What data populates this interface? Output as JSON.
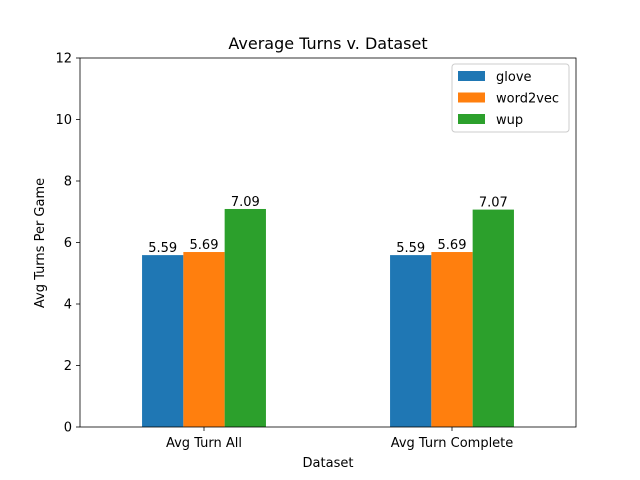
{
  "chart_data": {
    "type": "bar",
    "title": "Average Turns v. Dataset",
    "xlabel": "Dataset",
    "ylabel": "Avg Turns Per Game",
    "categories": [
      "Avg Turn All",
      "Avg Turn Complete"
    ],
    "series": [
      {
        "name": "glove",
        "color": "#1f77b4",
        "values": [
          5.59,
          5.59
        ]
      },
      {
        "name": "word2vec",
        "color": "#ff7f0e",
        "values": [
          5.69,
          5.69
        ]
      },
      {
        "name": "wup",
        "color": "#2ca02c",
        "values": [
          7.09,
          7.07
        ]
      }
    ],
    "ylim": [
      0,
      12
    ],
    "yticks": [
      0,
      2,
      4,
      6,
      8,
      10,
      12
    ],
    "grid": false,
    "legend_position": "top-right"
  }
}
